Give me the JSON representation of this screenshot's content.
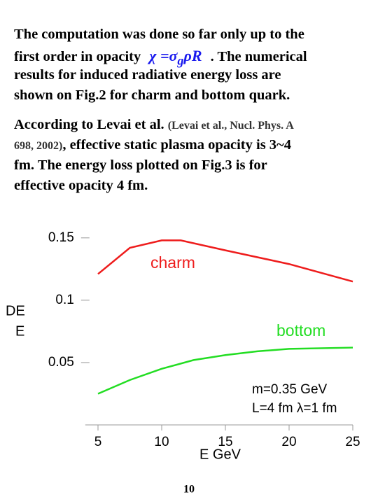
{
  "paragraph1": {
    "lines": [
      "The computation was done so far only up to the",
      "first order in opacity",
      ". The numerical",
      "results for induced radiative energy loss are",
      "shown on Fig.2 for charm and bottom quark."
    ],
    "formula": [
      "χ =σ",
      "g",
      "ρR"
    ]
  },
  "paragraph2": {
    "lines": [
      "According to Levai et al.",
      "698, 2002)",
      ", effective static plasma opacity is 3~4",
      "fm. The energy loss plotted on Fig.3 is for",
      "effective opacity 4 fm."
    ],
    "reference": "(Levai et al., Nucl. Phys. A"
  },
  "chart_data": {
    "type": "line",
    "xlabel": "E GeV",
    "ylabel": [
      "DE",
      "E"
    ],
    "xlim": [
      4,
      25
    ],
    "xticks": [
      5,
      10,
      15,
      20,
      25
    ],
    "ylim": [
      0,
      0.16
    ],
    "yticks": [
      0.05,
      0.1,
      0.15
    ],
    "series": [
      {
        "name": "charm",
        "color": "#ee1c1c",
        "x": [
          5,
          7.5,
          10,
          11.5,
          15,
          20,
          25
        ],
        "values": [
          0.121,
          0.142,
          0.148,
          0.148,
          0.14,
          0.129,
          0.115
        ]
      },
      {
        "name": "bottom",
        "color": "#22dd22",
        "x": [
          5,
          7.5,
          10,
          12.5,
          15,
          17.5,
          20,
          25
        ],
        "values": [
          0.025,
          0.036,
          0.045,
          0.052,
          0.056,
          0.059,
          0.061,
          0.062
        ]
      }
    ],
    "annotations": [
      "m=0.35 GeV",
      "L=4 fm  λ=1 fm"
    ]
  },
  "page_number": "10"
}
